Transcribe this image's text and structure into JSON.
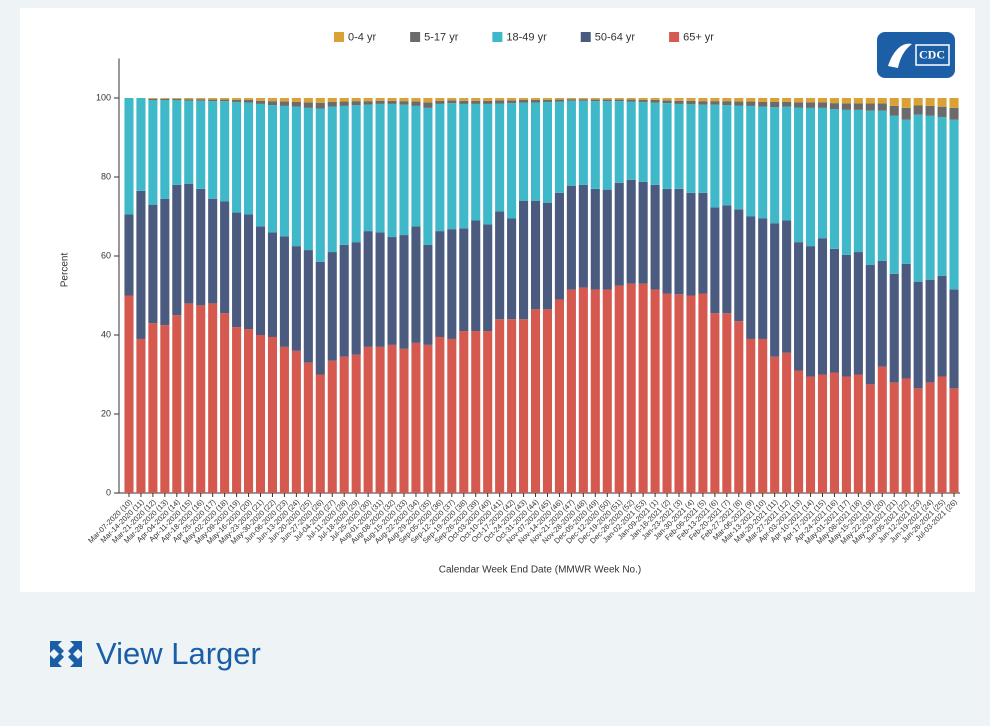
{
  "chart_data": {
    "type": "stacked_bar",
    "logo": "CDC",
    "y_label": "Percent",
    "x_label": "Calendar Week End Date (MMWR Week No.)",
    "ylim": [
      0,
      110
    ],
    "yticks": [
      0,
      20,
      40,
      60,
      80,
      100
    ],
    "legend": "top",
    "categories": [
      "Mar-07-2020 (10)",
      "Mar-14-2020 (11)",
      "Mar-21-2020 (12)",
      "Mar-28-2020 (13)",
      "Apr-04-2020 (14)",
      "Apr-11-2020 (15)",
      "Apr-18-2020 (16)",
      "Apr-25-2020 (17)",
      "May-02-2020 (18)",
      "May-09-2020 (19)",
      "May-16-2020 (20)",
      "May-23-2020 (21)",
      "May-30-2020 (22)",
      "Jun-06-2020 (23)",
      "Jun-13-2020 (24)",
      "Jun-20-2020 (25)",
      "Jun-27-2020 (26)",
      "Jul-04-2020 (27)",
      "Jul-11-2020 (28)",
      "Jul-18-2020 (29)",
      "Jul-25-2020 (30)",
      "Aug-01-2020 (31)",
      "Aug-08-2020 (32)",
      "Aug-15-2020 (33)",
      "Aug-22-2020 (34)",
      "Aug-29-2020 (35)",
      "Sep-05-2020 (36)",
      "Sep-12-2020 (37)",
      "Sep-19-2020 (38)",
      "Sep-26-2020 (39)",
      "Oct-03-2020 (40)",
      "Oct-10-2020 (41)",
      "Oct-17-2020 (42)",
      "Oct-24-2020 (43)",
      "Oct-31-2020 (44)",
      "Nov-07-2020 (45)",
      "Nov-14-2020 (46)",
      "Nov-21-2020 (47)",
      "Nov-28-2020 (48)",
      "Dec-05-2020 (49)",
      "Dec-12-2020 (50)",
      "Dec-19-2020 (51)",
      "Dec-26-2020 (52)",
      "Jan-02-2021 (53)",
      "Jan-09-2021 (1)",
      "Jan-16-2021 (2)",
      "Jan-23-2021 (3)",
      "Jan-30-2021 (4)",
      "Feb-06-2021 (5)",
      "Feb-13-2021 (6)",
      "Feb-20-2021 (7)",
      "Feb-27-2021 (8)",
      "Mar-06-2021 (9)",
      "Mar-13-2021 (10)",
      "Mar-20-2021 (11)",
      "Mar-27-2021 (12)",
      "Apr-03-2021 (13)",
      "Apr-10-2021 (14)",
      "Apr-17-2021 (15)",
      "Apr-24-2021 (16)",
      "May-01-2021 (17)",
      "May-08-2021 (18)",
      "May-15-2021 (19)",
      "May-22-2021 (20)",
      "May-29-2021 (21)",
      "Jun-05-2021 (22)",
      "Jun-12-2021 (23)",
      "Jun-19-2021 (24)",
      "Jun-26-2021 (25)",
      "Jul-03-2021 (26)"
    ],
    "series": [
      {
        "name": "0-4 yr",
        "color": "#d9a136",
        "values": [
          0,
          0,
          0.2,
          0.2,
          0.2,
          0.3,
          0.3,
          0.4,
          0.4,
          0.5,
          0.5,
          0.7,
          0.8,
          0.9,
          1,
          1.1,
          1.2,
          1,
          0.9,
          0.8,
          0.8,
          0.7,
          0.7,
          0.8,
          0.9,
          1.1,
          0.7,
          0.6,
          0.7,
          0.7,
          0.7,
          0.6,
          0.6,
          0.5,
          0.5,
          0.5,
          0.4,
          0.3,
          0.3,
          0.4,
          0.4,
          0.4,
          0.4,
          0.5,
          0.5,
          0.6,
          0.7,
          0.7,
          0.8,
          0.8,
          0.8,
          0.9,
          0.9,
          1,
          1,
          1,
          1.1,
          1.1,
          1.1,
          1.3,
          1.4,
          1.4,
          1.4,
          1.4,
          2,
          2.5,
          1.9,
          2,
          2.2,
          2.5
        ]
      },
      {
        "name": "5-17 yr",
        "color": "#6b6b6b",
        "values": [
          0,
          0,
          0.3,
          0.3,
          0.3,
          0.4,
          0.4,
          0.4,
          0.4,
          0.5,
          0.7,
          0.8,
          1,
          1.1,
          1.2,
          1.4,
          1.5,
          1.2,
          1.1,
          1,
          0.9,
          0.8,
          0.8,
          0.9,
          1.1,
          1.4,
          0.8,
          0.7,
          0.8,
          0.8,
          0.8,
          0.8,
          0.7,
          0.7,
          0.7,
          0.5,
          0.5,
          0.4,
          0.4,
          0.4,
          0.4,
          0.4,
          0.5,
          0.5,
          0.7,
          0.7,
          0.8,
          0.9,
          0.9,
          0.9,
          1,
          1,
          1.1,
          1.2,
          1.3,
          1.2,
          1.3,
          1.4,
          1.4,
          1.5,
          1.6,
          1.6,
          1.8,
          1.8,
          2.5,
          3,
          2.3,
          2.5,
          2.6,
          3
        ]
      },
      {
        "name": "18-49 yr",
        "color": "#3fb9ca",
        "values": [
          29.5,
          23.5,
          26.5,
          25,
          21.5,
          21,
          22.3,
          24.7,
          25.4,
          28,
          28.3,
          31,
          32.2,
          33,
          35.3,
          36,
          38.8,
          36.8,
          35.2,
          34.7,
          32,
          32.5,
          33.7,
          33,
          30.5,
          34.7,
          32.2,
          31.9,
          31.5,
          29.5,
          30.5,
          27.3,
          29.2,
          24.8,
          24.8,
          25.5,
          23.1,
          21.5,
          21.3,
          22.2,
          22.4,
          20.7,
          19.8,
          20.2,
          20.8,
          21.7,
          21.5,
          22.4,
          22.3,
          26,
          25.4,
          26.3,
          28,
          28.3,
          29.4,
          28.8,
          34.1,
          35,
          33,
          35.4,
          36.7,
          36,
          39,
          38,
          40,
          36.5,
          42.3,
          41.5,
          40.2,
          43
        ]
      },
      {
        "name": "50-64 yr",
        "color": "#4b5a7f",
        "values": [
          20.5,
          37.5,
          30,
          32,
          33,
          30.3,
          29.5,
          26.5,
          28.3,
          29,
          29,
          27.5,
          26.5,
          28,
          26.5,
          28.5,
          28.5,
          27.5,
          28.3,
          28.5,
          29.3,
          29,
          27.3,
          28.8,
          29.5,
          25.3,
          26.8,
          27.8,
          26,
          28,
          27,
          27.3,
          25.5,
          30,
          27.5,
          27,
          27,
          26.3,
          26,
          25.5,
          25.3,
          26,
          26.3,
          25.8,
          26.5,
          26.5,
          26.7,
          26,
          25.5,
          26.8,
          27.3,
          28.3,
          31,
          30.5,
          33.8,
          33.5,
          32.5,
          33,
          34.5,
          31.3,
          30.8,
          31,
          30.3,
          26.8,
          27.5,
          29,
          27,
          26,
          25.5,
          25
        ]
      },
      {
        "name": "65+ yr",
        "color": "#d6594f",
        "values": [
          50,
          39,
          43,
          42.5,
          45,
          48,
          47.5,
          48,
          45.5,
          42,
          41.5,
          40,
          39.5,
          37,
          36,
          33,
          30,
          33.5,
          34.5,
          35,
          37,
          37,
          37.5,
          36.5,
          38,
          37.5,
          39.5,
          39,
          41,
          41,
          41,
          44,
          44,
          44,
          46.5,
          46.5,
          49,
          51.5,
          52,
          51.5,
          51.5,
          52.5,
          53,
          53,
          51.5,
          50.5,
          50.3,
          50,
          50.5,
          45.5,
          45.5,
          43.5,
          39,
          39,
          34.5,
          35.5,
          31,
          29.5,
          30,
          30.5,
          29.5,
          30,
          27.5,
          32,
          28,
          29,
          26.5,
          28,
          29.5,
          26.5
        ]
      }
    ]
  },
  "view_larger": "View Larger"
}
